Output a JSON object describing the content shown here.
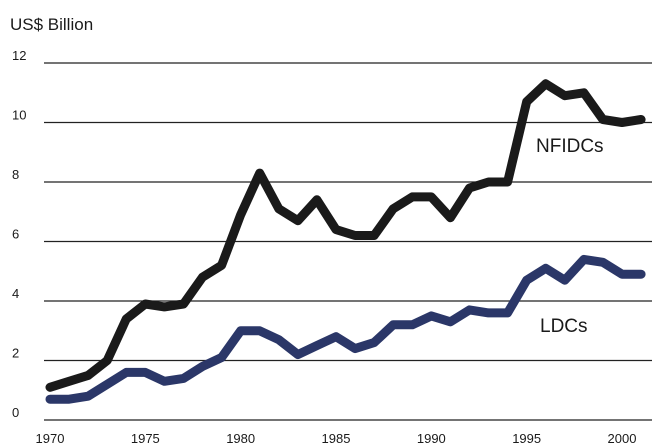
{
  "chart_data": {
    "type": "line",
    "ylabel": "US$ Billion",
    "xlim": [
      1970,
      2001
    ],
    "ylim": [
      0,
      12
    ],
    "grid": "horizontal",
    "x_ticks": [
      "1970",
      "1975",
      "1980",
      "1985",
      "1990",
      "1995",
      "2000"
    ],
    "y_ticks": [
      "0",
      "2",
      "4",
      "6",
      "8",
      "10",
      "12"
    ],
    "series": [
      {
        "name": "NFIDCs",
        "color": "#1a1a1a",
        "x": [
          1970,
          1971,
          1972,
          1973,
          1974,
          1975,
          1976,
          1977,
          1978,
          1979,
          1980,
          1981,
          1982,
          1983,
          1984,
          1985,
          1986,
          1987,
          1988,
          1989,
          1990,
          1991,
          1992,
          1993,
          1994,
          1995,
          1996,
          1997,
          1998,
          1999,
          2000,
          2001
        ],
        "values": [
          1.1,
          1.3,
          1.5,
          2.0,
          3.4,
          3.9,
          3.8,
          3.9,
          4.8,
          5.2,
          6.9,
          8.3,
          7.1,
          6.7,
          7.4,
          6.4,
          6.2,
          6.2,
          7.1,
          7.5,
          7.5,
          6.8,
          7.8,
          8.0,
          8.0,
          10.7,
          11.3,
          10.9,
          11.0,
          10.1,
          10.0,
          10.1
        ]
      },
      {
        "name": "LDCs",
        "color": "#2b3768",
        "x": [
          1970,
          1971,
          1972,
          1973,
          1974,
          1975,
          1976,
          1977,
          1978,
          1979,
          1980,
          1981,
          1982,
          1983,
          1984,
          1985,
          1986,
          1987,
          1988,
          1989,
          1990,
          1991,
          1992,
          1993,
          1994,
          1995,
          1996,
          1997,
          1998,
          1999,
          2000,
          2001
        ],
        "values": [
          0.7,
          0.7,
          0.8,
          1.2,
          1.6,
          1.6,
          1.3,
          1.4,
          1.8,
          2.1,
          3.0,
          3.0,
          2.7,
          2.2,
          2.5,
          2.8,
          2.4,
          2.6,
          3.2,
          3.2,
          3.5,
          3.3,
          3.7,
          3.6,
          3.6,
          4.7,
          5.1,
          4.7,
          5.4,
          5.3,
          4.9,
          4.9
        ]
      }
    ]
  }
}
